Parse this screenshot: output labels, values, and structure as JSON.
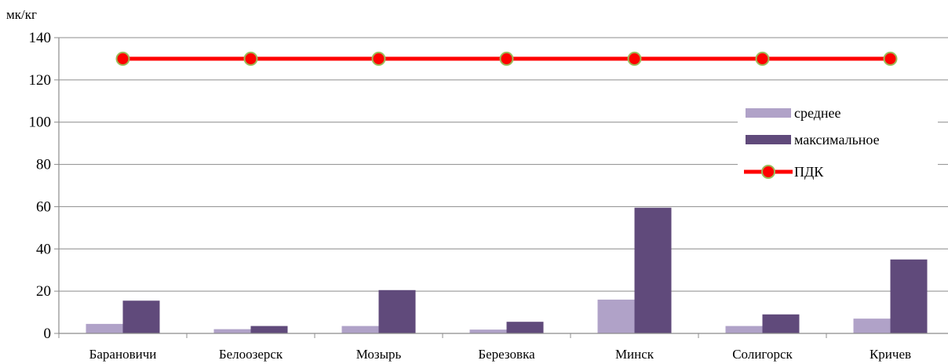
{
  "chart_data": {
    "type": "bar",
    "unit_label": "мк/кг",
    "categories": [
      "Барановичи",
      "Белоозерск",
      "Мозырь",
      "Березовка",
      "Минск",
      "Солигорск",
      "Кричев"
    ],
    "series": [
      {
        "name": "среднее",
        "type": "bar",
        "color": "#b0a2c8",
        "values": [
          4.5,
          2,
          3.5,
          1.8,
          16,
          3.5,
          7
        ]
      },
      {
        "name": "максимальное",
        "type": "bar",
        "color": "#604a7b",
        "values": [
          15.5,
          3.5,
          20.5,
          5.5,
          59.5,
          9,
          35
        ]
      },
      {
        "name": "ПДК",
        "type": "line",
        "color": "#ff0000",
        "marker_color": "#ff0000",
        "marker_edge": "#9bbb59",
        "values": [
          130,
          130,
          130,
          130,
          130,
          130,
          130
        ]
      }
    ],
    "ylim": [
      0,
      140
    ],
    "yticks": [
      0,
      20,
      40,
      60,
      80,
      100,
      120,
      140
    ],
    "grid": true,
    "legend_position": "right"
  }
}
